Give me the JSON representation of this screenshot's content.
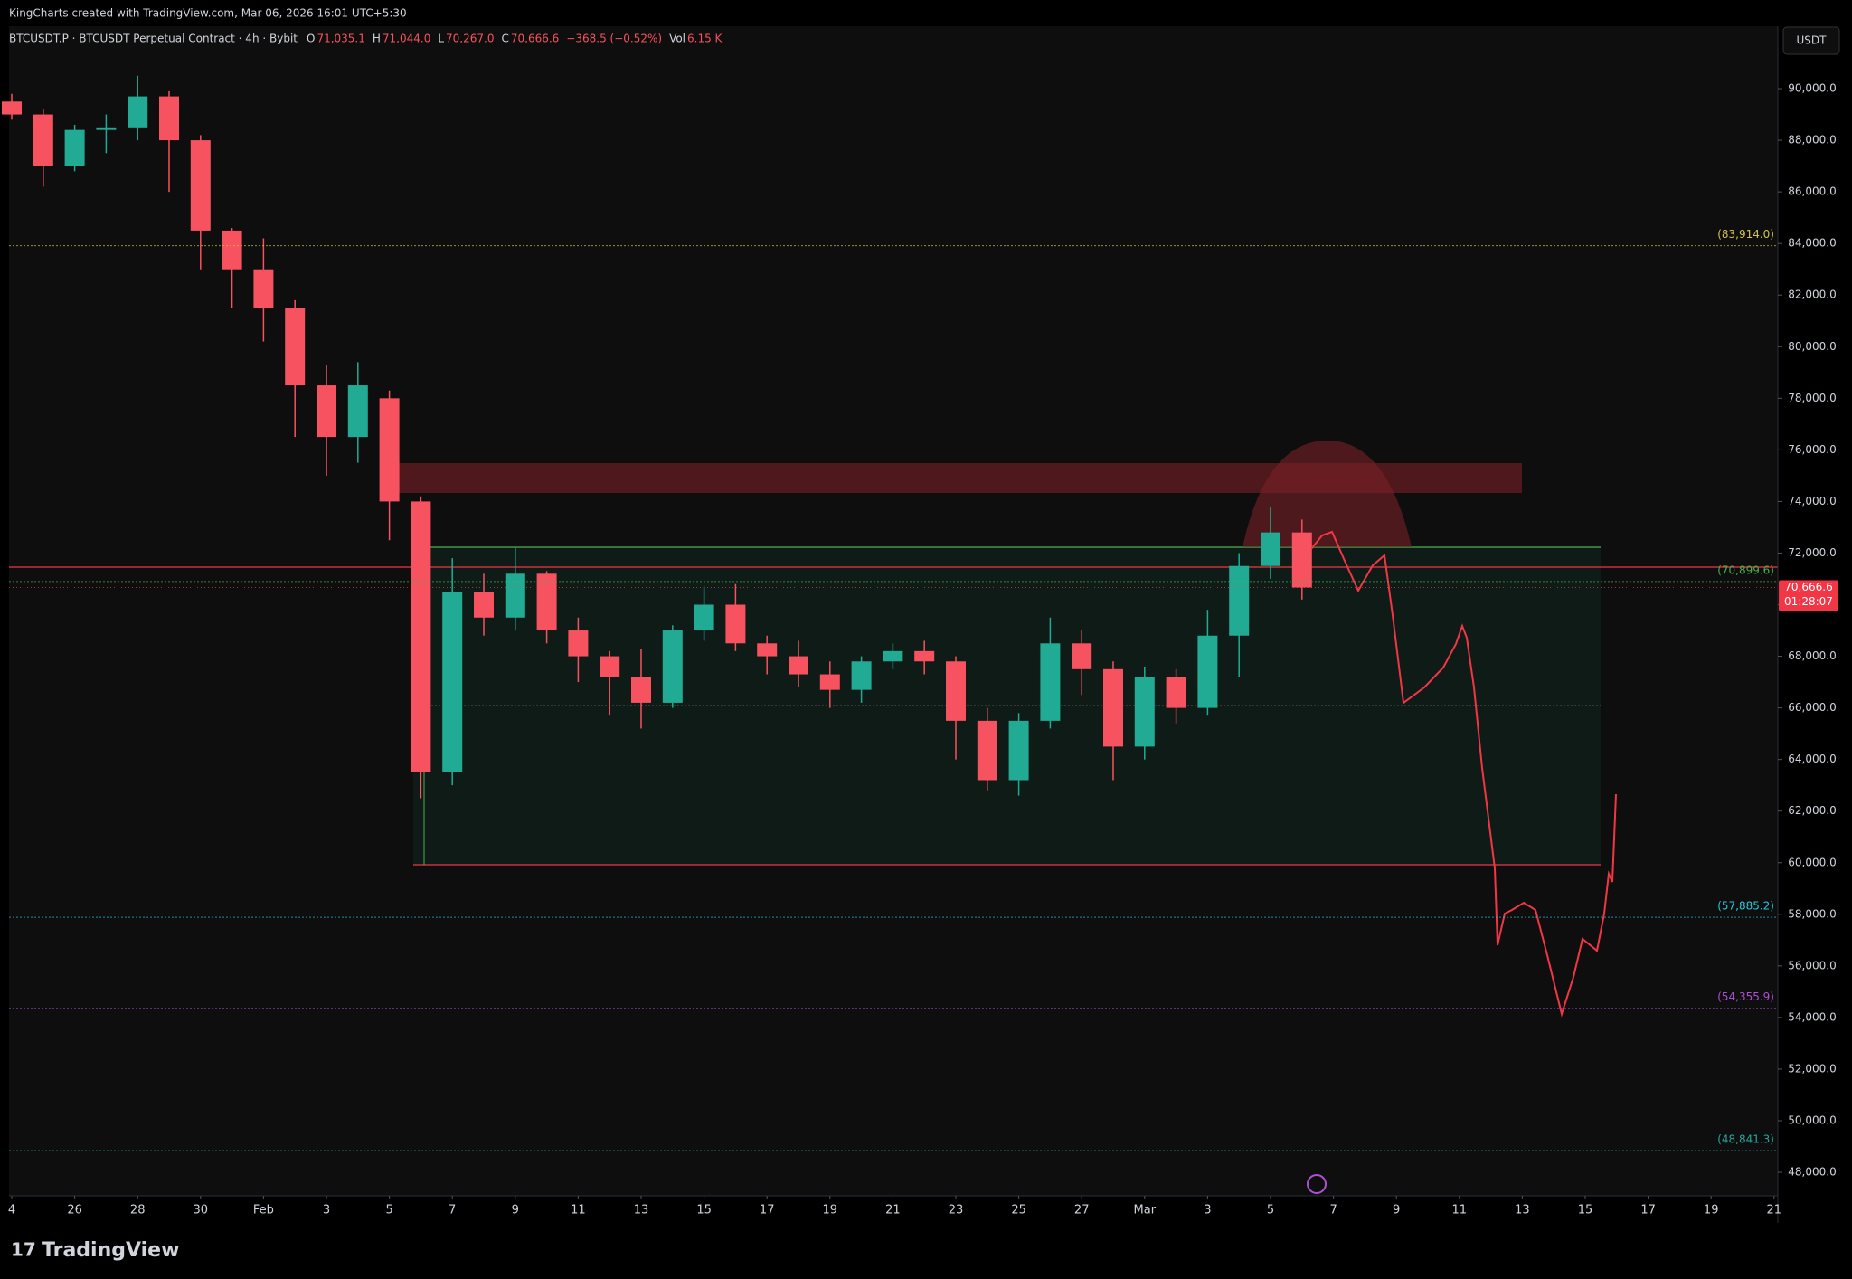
{
  "header": {
    "credit": "KingCharts created with TradingView.com, Mar 06, 2026 16:01 UTC+5:30",
    "symbol": "BTCUSDT.P · BTCUSDT Perpetual Contract · 4h · Bybit",
    "ohlc": [
      {
        "label": "O",
        "value": "71,035.1"
      },
      {
        "label": "H",
        "value": "71,044.0"
      },
      {
        "label": "L",
        "value": "70,267.0"
      },
      {
        "label": "C",
        "value": "70,666.6"
      }
    ],
    "change": "−368.5 (−0.52%)",
    "volume_label": "Vol",
    "volume": "6.15 K",
    "currency": "USDT"
  },
  "footer": {
    "brand": "TradingView"
  },
  "chart_data": {
    "type": "candlestick",
    "up_color": "#22ab94",
    "down_color": "#f7525f",
    "x": [
      "Jan 24",
      "Jan 25",
      "Jan 26",
      "Jan 27",
      "Jan 28",
      "Jan 29",
      "Jan 30",
      "Jan 31",
      "Feb 1",
      "Feb 2",
      "Feb 3",
      "Feb 4",
      "Feb 5",
      "Feb 6",
      "Feb 7",
      "Feb 8",
      "Feb 9",
      "Feb 10",
      "Feb 11",
      "Feb 12",
      "Feb 13",
      "Feb 14",
      "Feb 15",
      "Feb 16",
      "Feb 17",
      "Feb 18",
      "Feb 19",
      "Feb 20",
      "Feb 21",
      "Feb 22",
      "Feb 23",
      "Feb 24",
      "Feb 25",
      "Feb 26",
      "Feb 27",
      "Feb 28",
      "Mar 1",
      "Mar 2",
      "Mar 3",
      "Mar 4",
      "Mar 5",
      "Mar 6"
    ],
    "open": [
      89500,
      89000,
      87000,
      88400,
      88500,
      89700,
      88000,
      84500,
      83000,
      81500,
      78500,
      76500,
      78000,
      74000,
      63500,
      70500,
      69500,
      71200,
      69000,
      68000,
      67200,
      66200,
      69000,
      70000,
      68500,
      68000,
      67300,
      66700,
      67800,
      68200,
      67800,
      65500,
      63200,
      65500,
      68500,
      67500,
      64500,
      67200,
      66000,
      68800,
      71500,
      72800
    ],
    "high": [
      89800,
      89200,
      88600,
      89000,
      90500,
      89900,
      88200,
      84600,
      84200,
      81800,
      79300,
      79400,
      78300,
      74200,
      71800,
      71200,
      72200,
      71300,
      69500,
      68200,
      68300,
      69200,
      70700,
      70800,
      68800,
      68600,
      67800,
      68000,
      68500,
      68600,
      68000,
      66000,
      65800,
      69500,
      69000,
      67800,
      67600,
      67500,
      69800,
      72000,
      73800,
      73300
    ],
    "low": [
      88800,
      86200,
      86800,
      87500,
      88000,
      86000,
      83000,
      81500,
      80200,
      76500,
      75000,
      75500,
      72500,
      62500,
      63000,
      68800,
      69000,
      68500,
      67000,
      65700,
      65200,
      66000,
      68600,
      68200,
      67300,
      66800,
      66000,
      66200,
      67500,
      67300,
      64000,
      62800,
      62600,
      65200,
      66500,
      63200,
      64000,
      65400,
      65700,
      67200,
      71000,
      70200
    ],
    "close": [
      89000,
      87000,
      88400,
      88500,
      89700,
      88000,
      84500,
      83000,
      81500,
      78500,
      76500,
      78500,
      74000,
      63500,
      70500,
      69500,
      71200,
      69000,
      68000,
      67200,
      66200,
      69000,
      70000,
      68500,
      68000,
      67300,
      66700,
      67800,
      68200,
      67800,
      65500,
      63200,
      65500,
      68500,
      67500,
      64500,
      67200,
      66000,
      68800,
      71500,
      72800,
      70666.6
    ],
    "ylim": [
      47090,
      92420
    ],
    "yticks": [
      {
        "value": 48000,
        "label": "48,000.0"
      },
      {
        "value": 50000,
        "label": "50,000.0"
      },
      {
        "value": 52000,
        "label": "52,000.0"
      },
      {
        "value": 54000,
        "label": "54,000.0"
      },
      {
        "value": 56000,
        "label": "56,000.0"
      },
      {
        "value": 58000,
        "label": "58,000.0"
      },
      {
        "value": 60000,
        "label": "60,000.0"
      },
      {
        "value": 62000,
        "label": "62,000.0"
      },
      {
        "value": 64000,
        "label": "64,000.0"
      },
      {
        "value": 66000,
        "label": "66,000.0"
      },
      {
        "value": 68000,
        "label": "68,000.0"
      },
      {
        "value": 70000,
        "label": "70,000.0"
      },
      {
        "value": 72000,
        "label": "72,000.0"
      },
      {
        "value": 74000,
        "label": "74,000.0"
      },
      {
        "value": 76000,
        "label": "76,000.0"
      },
      {
        "value": 78000,
        "label": "78,000.0"
      },
      {
        "value": 80000,
        "label": "80,000.0"
      },
      {
        "value": 82000,
        "label": "82,000.0"
      },
      {
        "value": 84000,
        "label": "84,000.0"
      },
      {
        "value": 86000,
        "label": "86,000.0"
      },
      {
        "value": 88000,
        "label": "88,000.0"
      },
      {
        "value": 90000,
        "label": "90,000.0"
      }
    ],
    "xticks": [
      {
        "value": "Jan 24",
        "label": "4"
      },
      {
        "value": "Jan 26",
        "label": "26"
      },
      {
        "value": "Jan 28",
        "label": "28"
      },
      {
        "value": "Jan 30",
        "label": "30"
      },
      {
        "value": "Feb 1",
        "label": "Feb"
      },
      {
        "value": "Feb 3",
        "label": "3"
      },
      {
        "value": "Feb 5",
        "label": "5"
      },
      {
        "value": "Feb 7",
        "label": "7"
      },
      {
        "value": "Feb 9",
        "label": "9"
      },
      {
        "value": "Feb 11",
        "label": "11"
      },
      {
        "value": "Feb 13",
        "label": "13"
      },
      {
        "value": "Feb 15",
        "label": "15"
      },
      {
        "value": "Feb 17",
        "label": "17"
      },
      {
        "value": "Feb 19",
        "label": "19"
      },
      {
        "value": "Feb 21",
        "label": "21"
      },
      {
        "value": "Feb 23",
        "label": "23"
      },
      {
        "value": "Feb 25",
        "label": "25"
      },
      {
        "value": "Feb 27",
        "label": "27"
      },
      {
        "value": "Mar 1",
        "label": "Mar"
      },
      {
        "value": "Mar 3",
        "label": "3"
      },
      {
        "value": "Mar 5",
        "label": "5"
      },
      {
        "value": "Mar 7",
        "label": "7"
      },
      {
        "value": "Mar 9",
        "label": "9"
      },
      {
        "value": "Mar 11",
        "label": "11"
      },
      {
        "value": "Mar 13",
        "label": "13"
      },
      {
        "value": "Mar 15",
        "label": "15"
      },
      {
        "value": "Mar 17",
        "label": "17"
      },
      {
        "value": "Mar 19",
        "label": "19"
      },
      {
        "value": "Mar 21",
        "label": "21"
      }
    ],
    "grid": false,
    "levels": [
      {
        "value": 83914.0,
        "label": "(83,914.0)",
        "color": "#d4c44a"
      },
      {
        "value": 70899.6,
        "label": "(70,899.6)",
        "color": "#4caf50"
      },
      {
        "value": 57885.2,
        "label": "(57,885.2)",
        "color": "#26c6da"
      },
      {
        "value": 54355.9,
        "label": "(54,355.9)",
        "color": "#b04fd6"
      },
      {
        "value": 48841.3,
        "label": "(48,841.3)",
        "color": "#26a69a"
      }
    ],
    "last_price": {
      "value": 70666.6,
      "label": "70,666.6",
      "countdown": "01:28:07"
    }
  }
}
